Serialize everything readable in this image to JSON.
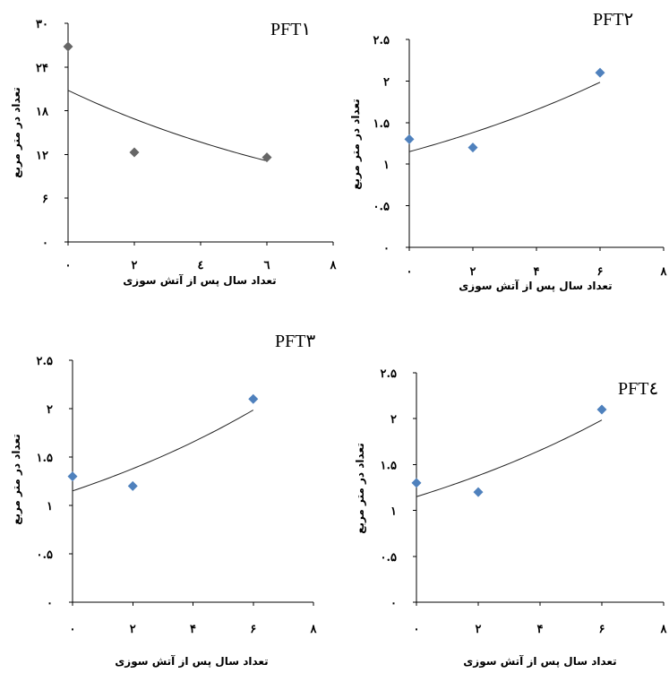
{
  "chart_data": [
    {
      "type": "scatter",
      "title": "PFT۱",
      "xlabel": "تعداد سال پس  از آتش سوزی",
      "ylabel": "تعداد در متر مربع",
      "xlim": [
        0,
        8
      ],
      "ylim": [
        0,
        30
      ],
      "x_ticks": [
        0,
        2,
        4,
        6,
        8
      ],
      "x_tick_labels": [
        "۰",
        "۲",
        "٤",
        "٦",
        "۸"
      ],
      "y_ticks": [
        0,
        6,
        12,
        18,
        24,
        30
      ],
      "y_tick_labels": [
        "۰",
        "۶",
        "۱۲",
        "۱۸",
        "۲۴",
        "۳۰"
      ],
      "marker_color": "#666666",
      "series": [
        {
          "points": [
            {
              "x": 0,
              "y": 26.8
            },
            {
              "x": 2,
              "y": 12.3
            },
            {
              "x": 6,
              "y": 11.6
            }
          ]
        }
      ],
      "trendline": {
        "type": "exponential",
        "a": 20.8,
        "b": -0.1044,
        "x_range": [
          0,
          6
        ]
      }
    },
    {
      "type": "scatter",
      "title": "PFT۲",
      "xlabel": "تعداد سال پس از آتش سوزی",
      "ylabel": "تعداد در متر مربع",
      "xlim": [
        0,
        8
      ],
      "ylim": [
        0,
        2.5
      ],
      "x_ticks": [
        0,
        2,
        4,
        6,
        8
      ],
      "x_tick_labels": [
        "۰",
        "۲",
        "۴",
        "۶",
        "۸"
      ],
      "y_ticks": [
        0,
        0.5,
        1,
        1.5,
        2,
        2.5
      ],
      "y_tick_labels": [
        "۰",
        "۰.۵",
        "۱",
        "۱.۵",
        "۲",
        "۲.۵"
      ],
      "marker_color": "#4f81bd",
      "series": [
        {
          "points": [
            {
              "x": 0,
              "y": 1.3
            },
            {
              "x": 2,
              "y": 1.2
            },
            {
              "x": 6,
              "y": 2.1
            }
          ]
        }
      ],
      "trendline": {
        "type": "exponential",
        "a": 1.15,
        "b": 0.091,
        "x_range": [
          0,
          6
        ]
      }
    },
    {
      "type": "scatter",
      "title": "PFT۳",
      "xlabel": "تعداد سال پس از آتش سوزی",
      "ylabel": "تعداد در متر مربع",
      "xlim": [
        0,
        8
      ],
      "ylim": [
        0,
        2.5
      ],
      "x_ticks": [
        0,
        2,
        4,
        6,
        8
      ],
      "x_tick_labels": [
        "۰",
        "۲",
        "۴",
        "۶",
        "۸"
      ],
      "y_ticks": [
        0,
        0.5,
        1,
        1.5,
        2,
        2.5
      ],
      "y_tick_labels": [
        "۰",
        "۰.۵",
        "۱",
        "۱.۵",
        "۲",
        "۲.۵"
      ],
      "marker_color": "#4f81bd",
      "series": [
        {
          "points": [
            {
              "x": 0,
              "y": 1.3
            },
            {
              "x": 2,
              "y": 1.2
            },
            {
              "x": 6,
              "y": 2.1
            }
          ]
        }
      ],
      "trendline": {
        "type": "exponential",
        "a": 1.15,
        "b": 0.091,
        "x_range": [
          0,
          6
        ]
      }
    },
    {
      "type": "scatter",
      "title": "PFT٤",
      "xlabel": "تعداد سال پس از آتش سوزی",
      "ylabel": "تعداد در متر مربع",
      "xlim": [
        0,
        8
      ],
      "ylim": [
        0,
        2.5
      ],
      "x_ticks": [
        0,
        2,
        4,
        6,
        8
      ],
      "x_tick_labels": [
        "۰",
        "۲",
        "۴",
        "۶",
        "۸"
      ],
      "y_ticks": [
        0,
        0.5,
        1,
        1.5,
        2,
        2.5
      ],
      "y_tick_labels": [
        "۰",
        "۰.۵",
        "۱",
        "۱.۵",
        "۲",
        "۲.۵"
      ],
      "marker_color": "#4f81bd",
      "series": [
        {
          "points": [
            {
              "x": 0,
              "y": 1.3
            },
            {
              "x": 2,
              "y": 1.2
            },
            {
              "x": 6,
              "y": 2.1
            }
          ]
        }
      ],
      "trendline": {
        "type": "exponential",
        "a": 1.15,
        "b": 0.091,
        "x_range": [
          0,
          6
        ]
      }
    }
  ]
}
